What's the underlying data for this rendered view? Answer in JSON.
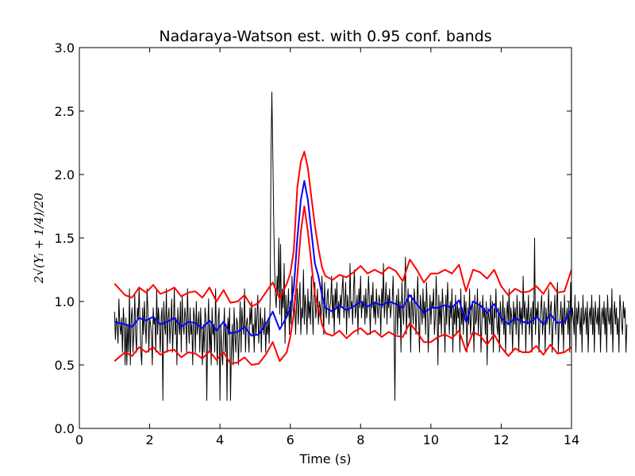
{
  "chart_data": {
    "type": "line",
    "title": "Nadaraya-Watson est. with 0.95 conf. bands",
    "xlabel": "Time (s)",
    "ylabel": "2√(Yᵢ + 1/4)/20",
    "xlim": [
      0,
      14
    ],
    "ylim": [
      0.0,
      3.0
    ],
    "xticks": [
      "0",
      "2",
      "4",
      "6",
      "8",
      "10",
      "12",
      "14"
    ],
    "yticks": [
      "0.0",
      "0.5",
      "1.0",
      "1.5",
      "2.0",
      "2.5",
      "3.0"
    ],
    "grid": false,
    "series": [
      {
        "color": "#000000",
        "line_width": 1,
        "x_start": 1.0,
        "x_step": 0.025,
        "values": [
          0.92,
          0.7,
          0.87,
          0.82,
          0.67,
          1.02,
          0.82,
          0.74,
          0.87,
          0.6,
          0.95,
          0.82,
          0.5,
          0.87,
          0.5,
          0.82,
          0.6,
          1.1,
          0.5,
          0.87,
          0.95,
          0.6,
          0.74,
          1.05,
          0.74,
          0.6,
          0.95,
          0.87,
          1.1,
          0.82,
          0.6,
          0.5,
          0.95,
          0.74,
          1.0,
          0.82,
          0.67,
          1.1,
          0.92,
          0.6,
          0.87,
          0.82,
          0.74,
          0.5,
          0.95,
          0.82,
          0.87,
          0.6,
          1.1,
          0.74,
          0.95,
          0.82,
          0.6,
          0.87,
          0.95,
          0.22,
          1.0,
          0.82,
          0.74,
          1.1,
          0.6,
          0.87,
          0.95,
          0.67,
          0.82,
          1.02,
          0.6,
          0.82,
          1.1,
          0.74,
          0.87,
          0.5,
          0.95,
          0.82,
          0.74,
          1.0,
          0.6,
          1.05,
          0.82,
          0.74,
          0.95,
          0.87,
          0.6,
          1.1,
          0.82,
          0.67,
          0.95,
          0.74,
          0.82,
          0.5,
          0.95,
          0.87,
          0.6,
          1.0,
          0.74,
          0.82,
          0.92,
          0.6,
          0.95,
          0.74,
          0.5,
          0.82,
          0.6,
          0.95,
          0.87,
          0.22,
          0.74,
          1.02,
          0.6,
          0.82,
          0.5,
          0.95,
          0.74,
          0.82,
          0.6,
          1.1,
          0.74,
          0.5,
          0.87,
          0.95,
          0.22,
          0.82,
          0.6,
          0.5,
          0.74,
          0.95,
          0.6,
          0.82,
          0.22,
          0.87,
          0.74,
          0.95,
          0.22,
          0.6,
          0.82,
          0.5,
          0.95,
          0.74,
          0.6,
          0.87,
          0.82,
          0.5,
          0.74,
          1.0,
          0.6,
          0.95,
          0.82,
          0.74,
          1.1,
          0.6,
          0.82,
          0.87,
          0.74,
          0.6,
          0.95,
          0.82,
          1.0,
          0.74,
          0.82,
          0.6,
          0.95,
          0.74,
          0.87,
          1.05,
          0.67,
          0.82,
          0.95,
          0.6,
          0.87,
          0.82,
          0.74,
          0.95,
          0.6,
          0.82,
          0.74,
          0.87,
          0.67,
          1.0,
          2.15,
          2.65,
          2.2,
          1.7,
          1.3,
          1.05,
          0.95,
          1.2,
          1.05,
          1.5,
          0.9,
          1.45,
          0.82,
          1.1,
          0.95,
          1.3,
          0.67,
          1.05,
          0.87,
          0.95,
          1.1,
          0.74,
          1.0,
          0.82,
          1.2,
          0.95,
          0.87,
          1.05,
          0.74,
          0.95,
          1.1,
          0.82,
          1.0,
          1.15,
          0.74,
          0.95,
          0.87,
          1.25,
          0.82,
          1.05,
          0.95,
          0.74,
          1.1,
          0.87,
          1.0,
          0.82,
          1.2,
          0.95,
          0.74,
          1.05,
          1.15,
          0.87,
          0.95,
          1.1,
          0.82,
          1.0,
          0.95,
          0.87,
          1.2,
          1.0,
          0.74,
          1.15,
          0.95,
          0.87,
          1.05,
          1.1,
          0.82,
          0.95,
          1.0,
          1.2,
          0.87,
          1.05,
          0.74,
          1.1,
          0.95,
          1.15,
          0.87,
          1.0,
          0.82,
          1.05,
          0.95,
          1.1,
          1.2,
          0.87,
          1.0,
          1.15,
          0.74,
          1.05,
          0.95,
          0.87,
          1.3,
          0.95,
          1.0,
          0.82,
          1.1,
          1.25,
          0.87,
          0.95,
          1.05,
          0.74,
          1.1,
          0.95,
          1.2,
          0.87,
          1.0,
          0.95,
          1.05,
          0.82,
          1.1,
          0.87,
          0.95,
          1.2,
          1.0,
          0.74,
          1.05,
          0.95,
          1.15,
          0.87,
          1.0,
          0.82,
          1.1,
          0.95,
          0.87,
          1.05,
          1.0,
          0.74,
          1.1,
          0.95,
          1.3,
          0.87,
          1.0,
          1.15,
          0.82,
          1.05,
          0.95,
          1.1,
          0.87,
          0.95,
          1.0,
          1.2,
          0.82,
          0.22,
          0.95,
          1.05,
          0.74,
          1.1,
          0.87,
          1.0,
          0.6,
          1.15,
          0.95,
          0.82,
          1.05,
          1.35,
          0.74,
          0.95,
          1.1,
          0.87,
          1.0,
          0.6,
          1.05,
          0.95,
          0.82,
          1.1,
          1.0,
          0.74,
          0.95,
          1.2,
          0.87,
          0.6,
          1.05,
          0.95,
          0.82,
          1.1,
          0.87,
          1.0,
          0.74,
          1.15,
          0.95,
          0.6,
          0.87,
          1.05,
          0.82,
          1.0,
          0.95,
          1.1,
          0.74,
          0.87,
          1.2,
          0.95,
          0.5,
          1.05,
          0.82,
          1.0,
          0.74,
          1.1,
          0.95,
          0.87,
          0.6,
          1.05,
          0.82,
          1.15,
          0.95,
          0.74,
          1.0,
          0.87,
          1.1,
          0.6,
          0.95,
          0.82,
          1.05,
          0.74,
          1.0,
          0.87,
          0.95,
          0.6,
          1.1,
          0.82,
          0.95,
          0.74,
          1.05,
          0.87,
          1.0,
          0.6,
          0.95,
          0.82,
          1.1,
          0.74,
          0.87,
          1.0,
          0.95,
          0.6,
          1.05,
          0.82,
          0.87,
          1.1,
          0.74,
          0.95,
          1.0,
          0.6,
          0.82,
          1.05,
          0.87,
          0.95,
          0.74,
          1.0,
          0.5,
          0.95,
          0.87,
          0.82,
          1.05,
          0.74,
          1.0,
          0.6,
          0.95,
          0.87,
          1.1,
          0.82,
          0.74,
          0.95,
          0.6,
          1.0,
          0.87,
          0.82,
          1.05,
          0.74,
          0.95,
          0.6,
          0.87,
          1.0,
          0.82,
          1.1,
          0.74,
          0.95,
          0.87,
          0.6,
          1.0,
          0.82,
          0.95,
          0.74,
          1.05,
          0.87,
          0.6,
          1.0,
          0.82,
          0.95,
          0.74,
          1.2,
          0.87,
          1.0,
          0.6,
          0.95,
          0.82,
          1.05,
          0.74,
          0.87,
          0.95,
          0.6,
          1.0,
          0.82,
          1.5,
          0.74,
          0.95,
          0.87,
          1.0,
          0.6,
          0.82,
          0.95,
          1.05,
          0.74,
          0.87,
          1.0,
          0.6,
          0.95,
          0.82,
          0.87,
          1.1,
          0.74,
          0.95,
          1.0,
          0.6,
          0.82,
          0.87,
          1.05,
          0.74,
          0.95,
          1.15,
          0.6,
          0.82,
          0.87,
          1.0,
          0.74,
          0.95,
          0.6,
          1.05,
          0.82,
          0.87,
          0.95,
          0.74,
          1.0,
          0.6,
          1.15,
          0.82,
          0.95,
          0.87,
          0.74,
          1.05,
          0.6,
          0.95,
          0.82,
          1.0,
          0.87,
          0.74,
          0.95,
          0.6,
          1.05,
          0.82,
          0.87,
          0.95,
          0.74,
          1.0,
          0.6,
          0.87,
          0.95,
          0.82,
          1.05,
          0.74,
          0.95,
          0.6,
          1.0,
          0.87,
          0.82,
          0.95,
          0.74,
          1.05,
          0.6,
          0.87,
          0.95,
          0.82,
          1.0,
          0.74,
          0.95,
          0.6,
          1.05,
          0.87,
          0.82,
          0.95,
          0.74,
          1.1,
          0.6,
          0.87,
          1.0,
          0.82,
          0.95,
          0.74,
          0.87,
          0.6,
          1.05,
          0.95,
          0.82,
          0.74,
          1.0,
          0.87,
          0.95,
          0.6,
          0.82
        ]
      },
      {
        "color": "#0000ff",
        "line_width": 2,
        "x": [
          1.0,
          1.3,
          1.5,
          1.7,
          1.9,
          2.1,
          2.3,
          2.5,
          2.7,
          2.9,
          3.1,
          3.3,
          3.5,
          3.7,
          3.9,
          4.1,
          4.3,
          4.5,
          4.7,
          4.9,
          5.1,
          5.3,
          5.5,
          5.7,
          5.9,
          6.0,
          6.1,
          6.2,
          6.3,
          6.4,
          6.5,
          6.6,
          6.7,
          6.8,
          6.9,
          7.0,
          7.2,
          7.4,
          7.6,
          7.8,
          8.0,
          8.2,
          8.4,
          8.6,
          8.8,
          9.0,
          9.2,
          9.4,
          9.6,
          9.8,
          10.0,
          10.2,
          10.4,
          10.6,
          10.8,
          11.0,
          11.2,
          11.4,
          11.6,
          11.8,
          12.0,
          12.2,
          12.4,
          12.6,
          12.8,
          13.0,
          13.2,
          13.4,
          13.6,
          13.8,
          14.0
        ],
        "values": [
          0.84,
          0.82,
          0.8,
          0.87,
          0.85,
          0.88,
          0.82,
          0.84,
          0.87,
          0.8,
          0.84,
          0.83,
          0.79,
          0.85,
          0.77,
          0.84,
          0.75,
          0.76,
          0.8,
          0.73,
          0.74,
          0.82,
          0.92,
          0.78,
          0.88,
          0.95,
          1.1,
          1.5,
          1.8,
          1.95,
          1.8,
          1.55,
          1.3,
          1.2,
          1.05,
          0.95,
          0.92,
          0.97,
          0.93,
          0.96,
          1.0,
          0.96,
          0.99,
          0.97,
          1.0,
          0.98,
          0.95,
          1.05,
          0.98,
          0.91,
          0.95,
          0.95,
          0.97,
          0.95,
          1.01,
          0.84,
          1.0,
          0.97,
          0.91,
          0.98,
          0.87,
          0.82,
          0.87,
          0.84,
          0.83,
          0.88,
          0.82,
          0.9,
          0.83,
          0.84,
          0.94
        ]
      },
      {
        "color": "#ff0000",
        "line_width": 2,
        "x": [
          1.0,
          1.3,
          1.5,
          1.7,
          1.9,
          2.1,
          2.3,
          2.5,
          2.7,
          2.9,
          3.1,
          3.3,
          3.5,
          3.7,
          3.9,
          4.1,
          4.3,
          4.5,
          4.7,
          4.9,
          5.1,
          5.3,
          5.5,
          5.7,
          5.9,
          6.0,
          6.1,
          6.2,
          6.3,
          6.4,
          6.5,
          6.6,
          6.7,
          6.8,
          6.9,
          7.0,
          7.2,
          7.4,
          7.6,
          7.8,
          8.0,
          8.2,
          8.4,
          8.6,
          8.8,
          9.0,
          9.2,
          9.4,
          9.6,
          9.8,
          10.0,
          10.2,
          10.4,
          10.6,
          10.8,
          11.0,
          11.2,
          11.4,
          11.6,
          11.8,
          12.0,
          12.2,
          12.4,
          12.6,
          12.8,
          13.0,
          13.2,
          13.4,
          13.6,
          13.8,
          14.0
        ],
        "values": [
          1.14,
          1.05,
          1.03,
          1.11,
          1.07,
          1.13,
          1.06,
          1.08,
          1.11,
          1.04,
          1.07,
          1.08,
          1.03,
          1.11,
          1.0,
          1.09,
          0.99,
          1.0,
          1.05,
          0.96,
          0.99,
          1.07,
          1.15,
          1.02,
          1.14,
          1.22,
          1.4,
          1.9,
          2.1,
          2.18,
          2.05,
          1.82,
          1.6,
          1.42,
          1.27,
          1.2,
          1.17,
          1.21,
          1.19,
          1.23,
          1.28,
          1.22,
          1.25,
          1.22,
          1.27,
          1.24,
          1.16,
          1.33,
          1.25,
          1.15,
          1.22,
          1.22,
          1.25,
          1.22,
          1.29,
          1.08,
          1.25,
          1.23,
          1.18,
          1.25,
          1.12,
          1.05,
          1.1,
          1.07,
          1.08,
          1.12,
          1.06,
          1.15,
          1.07,
          1.08,
          1.25
        ]
      },
      {
        "color": "#ff0000",
        "line_width": 2,
        "x": [
          1.0,
          1.3,
          1.5,
          1.7,
          1.9,
          2.1,
          2.3,
          2.5,
          2.7,
          2.9,
          3.1,
          3.3,
          3.5,
          3.7,
          3.9,
          4.1,
          4.3,
          4.5,
          4.7,
          4.9,
          5.1,
          5.3,
          5.5,
          5.7,
          5.9,
          6.0,
          6.1,
          6.2,
          6.3,
          6.4,
          6.5,
          6.6,
          6.7,
          6.8,
          6.9,
          7.0,
          7.2,
          7.4,
          7.6,
          7.8,
          8.0,
          8.2,
          8.4,
          8.6,
          8.8,
          9.0,
          9.2,
          9.4,
          9.6,
          9.8,
          10.0,
          10.2,
          10.4,
          10.6,
          10.8,
          11.0,
          11.2,
          11.4,
          11.6,
          11.8,
          12.0,
          12.2,
          12.4,
          12.6,
          12.8,
          13.0,
          13.2,
          13.4,
          13.6,
          13.8,
          14.0
        ],
        "values": [
          0.53,
          0.6,
          0.57,
          0.64,
          0.6,
          0.64,
          0.58,
          0.61,
          0.62,
          0.56,
          0.6,
          0.59,
          0.55,
          0.61,
          0.54,
          0.6,
          0.51,
          0.52,
          0.56,
          0.5,
          0.51,
          0.58,
          0.68,
          0.53,
          0.6,
          0.72,
          0.9,
          1.2,
          1.55,
          1.75,
          1.55,
          1.3,
          1.05,
          0.95,
          0.82,
          0.75,
          0.73,
          0.77,
          0.71,
          0.76,
          0.79,
          0.74,
          0.77,
          0.72,
          0.76,
          0.73,
          0.72,
          0.83,
          0.76,
          0.68,
          0.68,
          0.72,
          0.74,
          0.71,
          0.77,
          0.61,
          0.76,
          0.73,
          0.66,
          0.74,
          0.64,
          0.57,
          0.63,
          0.6,
          0.6,
          0.65,
          0.58,
          0.66,
          0.59,
          0.6,
          0.64
        ]
      }
    ]
  }
}
